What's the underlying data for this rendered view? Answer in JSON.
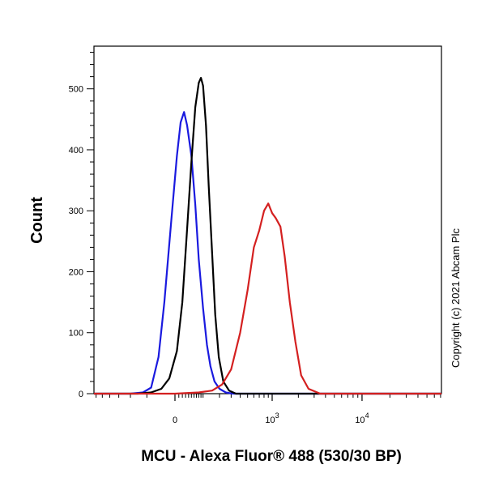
{
  "chart_data": {
    "type": "line",
    "xlabel": "MCU - Alexa Fluor® 488 (530/30 BP)",
    "ylabel": "Count",
    "ylim": [
      0,
      570
    ],
    "xscale": "logicle",
    "yticks": [
      0,
      100,
      200,
      300,
      400,
      500
    ],
    "xticks": [
      {
        "value": 0,
        "label": "0"
      },
      {
        "value": 1000,
        "label": "10",
        "exp": "3"
      },
      {
        "value": 10000,
        "label": "10",
        "exp": "4"
      }
    ],
    "grid": false,
    "series": [
      {
        "color": "#1a1adf",
        "points": [
          [
            -200,
            0
          ],
          [
            -120,
            2
          ],
          [
            -80,
            10
          ],
          [
            -50,
            60
          ],
          [
            -30,
            150
          ],
          [
            -10,
            280
          ],
          [
            5,
            390
          ],
          [
            15,
            445
          ],
          [
            25,
            462
          ],
          [
            35,
            440
          ],
          [
            50,
            390
          ],
          [
            65,
            310
          ],
          [
            80,
            220
          ],
          [
            100,
            140
          ],
          [
            120,
            80
          ],
          [
            140,
            45
          ],
          [
            165,
            20
          ],
          [
            200,
            8
          ],
          [
            250,
            2
          ],
          [
            320,
            0
          ]
        ]
      },
      {
        "color": "#000000",
        "points": [
          [
            -150,
            0
          ],
          [
            -80,
            2
          ],
          [
            -40,
            8
          ],
          [
            -15,
            25
          ],
          [
            5,
            70
          ],
          [
            20,
            150
          ],
          [
            35,
            270
          ],
          [
            50,
            380
          ],
          [
            65,
            470
          ],
          [
            80,
            510
          ],
          [
            90,
            518
          ],
          [
            100,
            505
          ],
          [
            115,
            440
          ],
          [
            130,
            340
          ],
          [
            150,
            230
          ],
          [
            170,
            130
          ],
          [
            195,
            60
          ],
          [
            230,
            20
          ],
          [
            280,
            5
          ],
          [
            350,
            0
          ]
        ]
      },
      {
        "color": "#d42020",
        "points": [
          [
            0,
            0
          ],
          [
            80,
            2
          ],
          [
            150,
            5
          ],
          [
            220,
            15
          ],
          [
            300,
            40
          ],
          [
            400,
            100
          ],
          [
            500,
            170
          ],
          [
            600,
            240
          ],
          [
            700,
            268
          ],
          [
            800,
            300
          ],
          [
            900,
            312
          ],
          [
            1000,
            296
          ],
          [
            1100,
            288
          ],
          [
            1250,
            274
          ],
          [
            1400,
            225
          ],
          [
            1600,
            150
          ],
          [
            1850,
            85
          ],
          [
            2150,
            30
          ],
          [
            2600,
            8
          ],
          [
            3500,
            0
          ]
        ]
      }
    ]
  },
  "copyright": "Copyright (c) 2021 Abcam Plc",
  "colors": {
    "blue": "#1a1adf",
    "black": "#000000",
    "red": "#d42020"
  }
}
